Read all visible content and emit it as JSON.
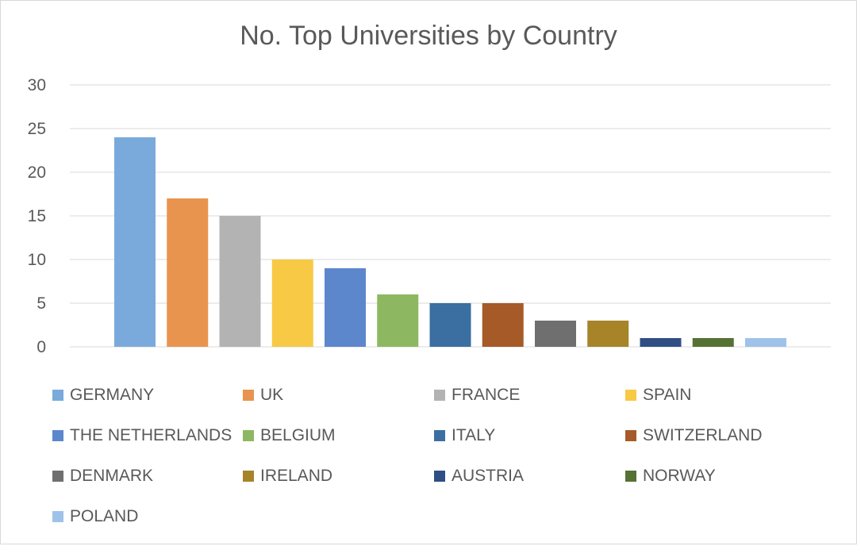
{
  "chart_data": {
    "type": "bar",
    "title": "No. Top Universities by Country",
    "xlabel": "",
    "ylabel": "",
    "ylim": [
      0,
      30
    ],
    "yticks": [
      0,
      5,
      10,
      15,
      20,
      25,
      30
    ],
    "grid": true,
    "legend_position": "bottom",
    "categories": [
      "GERMANY",
      "UK",
      "FRANCE",
      "SPAIN",
      "THE NETHERLANDS",
      "BELGIUM",
      "ITALY",
      "SWITZERLAND",
      "DENMARK",
      "IRELAND",
      "AUSTRIA",
      "NORWAY",
      "POLAND"
    ],
    "values": [
      24,
      17,
      15,
      10,
      9,
      6,
      5,
      5,
      3,
      3,
      1,
      1,
      1
    ],
    "colors": [
      "#79aadb",
      "#e8944f",
      "#b3b3b3",
      "#f7c945",
      "#5d87cd",
      "#8db861",
      "#3b6fa2",
      "#a65a27",
      "#6f6f6f",
      "#a88429",
      "#2f4f84",
      "#557234",
      "#9fc2e9"
    ]
  }
}
